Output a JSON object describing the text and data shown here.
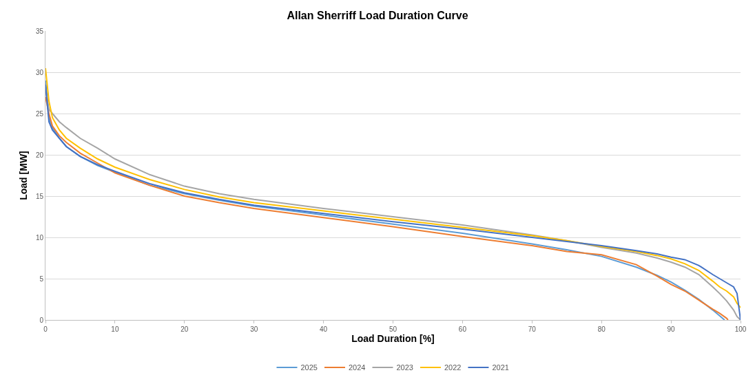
{
  "chart_data": {
    "type": "line",
    "title": "Allan Sherriff Load Duration Curve",
    "xlabel": "Load Duration [%]",
    "ylabel": "Load [MW]",
    "xlim": [
      0,
      100
    ],
    "xticks": [
      0,
      10,
      20,
      30,
      40,
      50,
      60,
      70,
      80,
      90,
      100
    ],
    "ylim": [
      0,
      35
    ],
    "yticks": [
      0,
      5,
      10,
      15,
      20,
      25,
      30,
      35
    ],
    "grid": "y",
    "legend": "bottom",
    "marker": "none",
    "line_style": "solid",
    "series": [
      {
        "name": "2025",
        "color": "#5b9bd5",
        "x": [
          0,
          0.5,
          1,
          2,
          3,
          5,
          7.5,
          10,
          15,
          20,
          25,
          30,
          40,
          50,
          60,
          70,
          75,
          80,
          85,
          88,
          90,
          92,
          94,
          96,
          97,
          97.7
        ],
        "values": [
          29,
          24.5,
          23.3,
          22,
          21,
          19.8,
          18.7,
          17.9,
          16.3,
          15.3,
          14.5,
          13.8,
          12.7,
          11.6,
          10.5,
          9.2,
          8.5,
          7.7,
          6.4,
          5.4,
          4.6,
          3.6,
          2.5,
          1.2,
          0.5,
          0
        ]
      },
      {
        "name": "2024",
        "color": "#ed7d31",
        "x": [
          0,
          0.5,
          1,
          2,
          3,
          5,
          7.5,
          10,
          15,
          20,
          25,
          30,
          40,
          50,
          60,
          70,
          75,
          80,
          85,
          88,
          90,
          92,
          94,
          96,
          97,
          98,
          98.2
        ],
        "values": [
          27,
          25,
          23.5,
          22.3,
          21.5,
          20.2,
          19,
          17.8,
          16.3,
          15,
          14.2,
          13.5,
          12.4,
          11.3,
          10.1,
          9,
          8.3,
          7.9,
          6.7,
          5.3,
          4.3,
          3.5,
          2.4,
          1.3,
          0.8,
          0.2,
          0
        ]
      },
      {
        "name": "2023",
        "color": "#a5a5a5",
        "x": [
          0,
          0.5,
          1,
          2,
          3,
          5,
          7.5,
          10,
          15,
          20,
          25,
          30,
          40,
          50,
          60,
          70,
          75,
          80,
          85,
          88,
          90,
          92,
          94,
          96,
          97,
          98,
          99,
          99.5,
          100
        ],
        "values": [
          28,
          25.5,
          25,
          24,
          23.3,
          22,
          20.8,
          19.5,
          17.6,
          16.2,
          15.3,
          14.6,
          13.5,
          12.5,
          11.5,
          10.3,
          9.6,
          8.8,
          8.1,
          7.5,
          7,
          6.4,
          5.5,
          4,
          3.2,
          2.3,
          1.2,
          0.4,
          0
        ]
      },
      {
        "name": "2022",
        "color": "#ffc000",
        "x": [
          0,
          0.5,
          1,
          2,
          3,
          5,
          7.5,
          10,
          15,
          20,
          25,
          30,
          40,
          50,
          60,
          70,
          75,
          80,
          85,
          88,
          90,
          92,
          94,
          96,
          97,
          98,
          99,
          99.5,
          100
        ],
        "values": [
          30.5,
          26.5,
          24.5,
          23,
          22,
          20.8,
          19.5,
          18.5,
          17,
          15.8,
          14.9,
          14.2,
          13.2,
          12.2,
          11.2,
          10.2,
          9.6,
          8.9,
          8.3,
          7.8,
          7.4,
          6.8,
          6,
          4.7,
          4,
          3.5,
          2.8,
          2,
          1.5
        ]
      },
      {
        "name": "2021",
        "color": "#4472c4",
        "x": [
          0,
          0.5,
          1,
          2,
          3,
          5,
          7.5,
          10,
          15,
          20,
          25,
          30,
          40,
          50,
          60,
          70,
          75,
          80,
          85,
          88,
          90,
          92,
          94,
          96,
          97,
          98,
          99,
          99.5,
          100
        ],
        "values": [
          28.5,
          24,
          23,
          22,
          21,
          19.8,
          18.8,
          18,
          16.5,
          15.4,
          14.6,
          13.9,
          12.9,
          11.9,
          11,
          10,
          9.5,
          9,
          8.4,
          8,
          7.6,
          7.3,
          6.6,
          5.5,
          5,
          4.5,
          4,
          3.2,
          0
        ]
      }
    ]
  }
}
